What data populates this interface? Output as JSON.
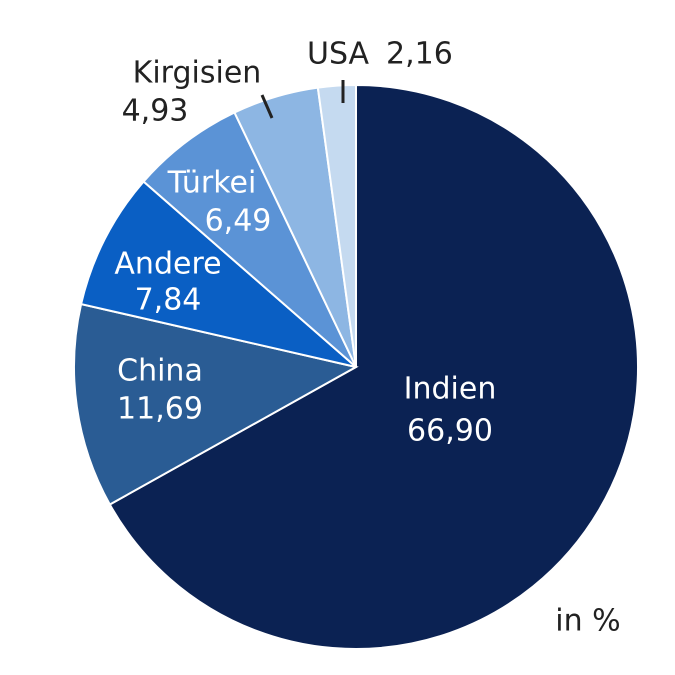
{
  "chart_data": {
    "type": "pie",
    "categories": [
      "Indien",
      "China",
      "Andere",
      "Türkei",
      "Kirgisien",
      "USA"
    ],
    "values": [
      66.9,
      11.69,
      7.84,
      6.49,
      4.93,
      2.16
    ],
    "value_labels": [
      "66,90",
      "11,69",
      "7,84",
      "6,49",
      "4,93",
      "2,16"
    ],
    "colors": [
      "#0b2253",
      "#2a5c94",
      "#0a5fc4",
      "#5b93d6",
      "#8db6e3",
      "#c5daf0"
    ],
    "annotation": "in %"
  }
}
